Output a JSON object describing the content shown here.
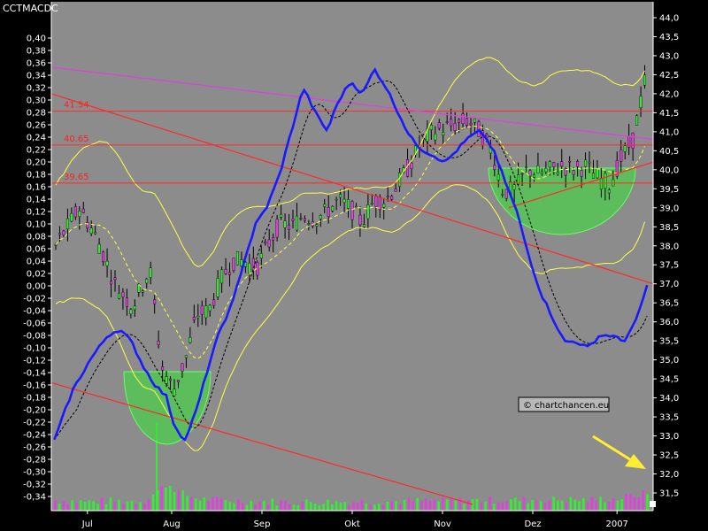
{
  "chart_data": {
    "type": "line",
    "title": "CCTMACDC",
    "watermark": "© chartchancen.eu",
    "x_labels": [
      "Jul",
      "Aug",
      "Sep",
      "Okt",
      "Nov",
      "Dez",
      "2007"
    ],
    "left_axis": {
      "min": -0.34,
      "max": 0.4,
      "step": 0.02,
      "labels": [
        "0,40",
        "0,38",
        "0,36",
        "0,34",
        "0,32",
        "0,30",
        "0,28",
        "0,26",
        "0,24",
        "0,22",
        "0,20",
        "0,18",
        "0,16",
        "0,14",
        "0,12",
        "0,10",
        "0,08",
        "0,06",
        "0,04",
        "0,02",
        "0,00",
        "-0,02",
        "-0,04",
        "-0,06",
        "-0,08",
        "-0,10",
        "-0,12",
        "-0,14",
        "-0,16",
        "-0,18",
        "-0,20",
        "-0,22",
        "-0,24",
        "-0,26",
        "-0,28",
        "-0,30",
        "-0,32",
        "-0,34"
      ]
    },
    "right_axis": {
      "min": 31.5,
      "max": 44.0,
      "step": 0.5,
      "labels": [
        "44,0",
        "43,5",
        "43,0",
        "42,5",
        "42,0",
        "41,5",
        "41,0",
        "40,5",
        "40,0",
        "39,5",
        "39,0",
        "38,5",
        "38,0",
        "37,5",
        "37,0",
        "36,5",
        "36,0",
        "35,5",
        "35,0",
        "34,5",
        "34,0",
        "33,5",
        "33,0",
        "32,5",
        "32,0",
        "31,5"
      ]
    },
    "levels": [
      {
        "label": "41.54",
        "value": 41.54
      },
      {
        "label": "40.65",
        "value": 40.65
      },
      {
        "label": "39.65",
        "value": 39.65
      }
    ],
    "trendlines": [
      {
        "name": "",
        "color": "#ff2a2a",
        "points": [
          [
            0,
            42.0
          ],
          [
            1,
            37.0
          ]
        ]
      },
      {
        "name": "",
        "color": "#ff2a2a",
        "points": [
          [
            0,
            34.4
          ],
          [
            0.7,
            31.2
          ]
        ]
      },
      {
        "name": "",
        "color": "#ff2a2a",
        "points": [
          [
            0.76,
            39.0
          ],
          [
            1,
            40.2
          ]
        ]
      },
      {
        "name": "",
        "color": "#e040e0",
        "points": [
          [
            0,
            42.7
          ],
          [
            1,
            40.8
          ]
        ]
      }
    ],
    "macd_key": [
      [
        0,
        -0.25
      ],
      [
        0.03,
        -0.17
      ],
      [
        0.06,
        -0.12
      ],
      [
        0.09,
        -0.08
      ],
      [
        0.11,
        -0.07
      ],
      [
        0.13,
        -0.09
      ],
      [
        0.15,
        -0.13
      ],
      [
        0.17,
        -0.16
      ],
      [
        0.19,
        -0.18
      ],
      [
        0.2,
        -0.22
      ],
      [
        0.22,
        -0.25
      ],
      [
        0.24,
        -0.2
      ],
      [
        0.26,
        -0.13
      ],
      [
        0.28,
        -0.07
      ],
      [
        0.3,
        -0.03
      ],
      [
        0.32,
        0.04
      ],
      [
        0.34,
        0.1
      ],
      [
        0.36,
        0.13
      ],
      [
        0.38,
        0.18
      ],
      [
        0.4,
        0.25
      ],
      [
        0.42,
        0.32
      ],
      [
        0.44,
        0.28
      ],
      [
        0.46,
        0.25
      ],
      [
        0.48,
        0.3
      ],
      [
        0.5,
        0.33
      ],
      [
        0.52,
        0.31
      ],
      [
        0.54,
        0.35
      ],
      [
        0.56,
        0.32
      ],
      [
        0.58,
        0.28
      ],
      [
        0.6,
        0.24
      ],
      [
        0.62,
        0.22
      ],
      [
        0.64,
        0.21
      ],
      [
        0.66,
        0.2
      ],
      [
        0.68,
        0.22
      ],
      [
        0.7,
        0.24
      ],
      [
        0.72,
        0.25
      ],
      [
        0.74,
        0.22
      ],
      [
        0.76,
        0.17
      ],
      [
        0.78,
        0.12
      ],
      [
        0.8,
        0.05
      ],
      [
        0.82,
        -0.01
      ],
      [
        0.84,
        -0.05
      ],
      [
        0.86,
        -0.09
      ],
      [
        0.88,
        -0.09
      ],
      [
        0.9,
        -0.1
      ],
      [
        0.92,
        -0.08
      ],
      [
        0.94,
        -0.08
      ],
      [
        0.96,
        -0.09
      ],
      [
        0.98,
        -0.06
      ],
      [
        1.0,
        0.0
      ]
    ],
    "candle_key": [
      [
        0,
        38.0
      ],
      [
        0.04,
        39.0
      ],
      [
        0.07,
        38.2
      ],
      [
        0.1,
        37.0
      ],
      [
        0.13,
        36.4
      ],
      [
        0.16,
        37.4
      ],
      [
        0.18,
        34.8
      ],
      [
        0.2,
        34.2
      ],
      [
        0.22,
        35.0
      ],
      [
        0.24,
        36.2
      ],
      [
        0.26,
        36.3
      ],
      [
        0.28,
        37.1
      ],
      [
        0.3,
        37.6
      ],
      [
        0.32,
        37.6
      ],
      [
        0.34,
        37.4
      ],
      [
        0.36,
        38.0
      ],
      [
        0.38,
        38.6
      ],
      [
        0.4,
        38.5
      ],
      [
        0.42,
        38.8
      ],
      [
        0.44,
        38.7
      ],
      [
        0.46,
        38.9
      ],
      [
        0.48,
        39.2
      ],
      [
        0.5,
        39.0
      ],
      [
        0.52,
        38.6
      ],
      [
        0.54,
        39.2
      ],
      [
        0.56,
        39.2
      ],
      [
        0.58,
        39.6
      ],
      [
        0.6,
        40.1
      ],
      [
        0.62,
        40.7
      ],
      [
        0.64,
        41.0
      ],
      [
        0.66,
        41.1
      ],
      [
        0.68,
        41.2
      ],
      [
        0.7,
        41.3
      ],
      [
        0.72,
        41.0
      ],
      [
        0.74,
        40.5
      ],
      [
        0.76,
        39.4
      ],
      [
        0.78,
        39.5
      ],
      [
        0.8,
        40.0
      ],
      [
        0.82,
        39.9
      ],
      [
        0.84,
        40.0
      ],
      [
        0.86,
        40.1
      ],
      [
        0.88,
        40.0
      ],
      [
        0.9,
        40.1
      ],
      [
        0.92,
        39.8
      ],
      [
        0.94,
        39.6
      ],
      [
        0.96,
        40.3
      ],
      [
        0.98,
        40.8
      ],
      [
        1.0,
        42.3
      ]
    ],
    "volumes_key": [
      [
        0,
        0.28
      ],
      [
        0.05,
        0.22
      ],
      [
        0.1,
        0.25
      ],
      [
        0.15,
        0.25
      ],
      [
        0.19,
        1.0
      ],
      [
        0.21,
        0.6
      ],
      [
        0.24,
        0.35
      ],
      [
        0.3,
        0.25
      ],
      [
        0.4,
        0.2
      ],
      [
        0.5,
        0.22
      ],
      [
        0.6,
        0.25
      ],
      [
        0.7,
        0.28
      ],
      [
        0.8,
        0.3
      ],
      [
        0.9,
        0.3
      ],
      [
        0.95,
        0.35
      ],
      [
        1.0,
        0.6
      ]
    ],
    "grid": false
  }
}
